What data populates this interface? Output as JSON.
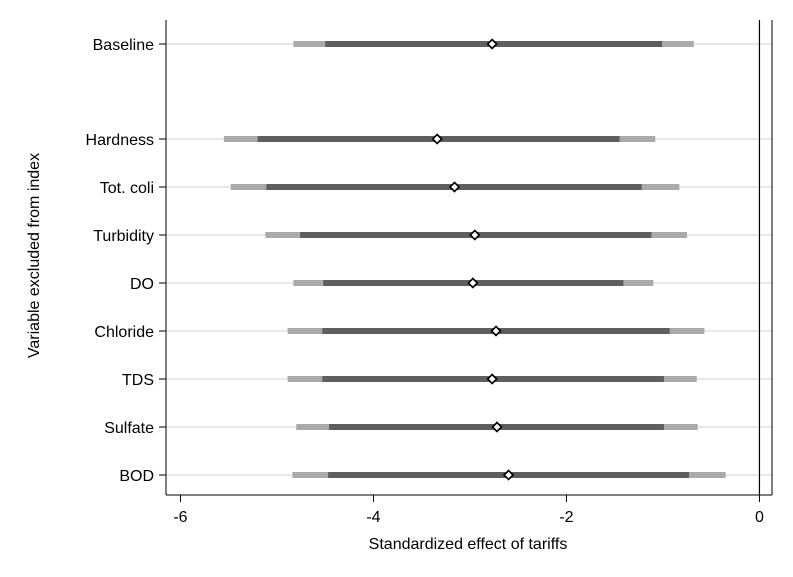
{
  "chart_data": {
    "type": "coefficient-interval",
    "title": "",
    "xlabel": "Standardized effect of tariffs",
    "ylabel": "Variable excluded from index",
    "xlim": [
      -6.15,
      0.13
    ],
    "xticks": [
      -6,
      -4,
      -2,
      0
    ],
    "xtick_labels": [
      "-6",
      "-4",
      "-2",
      "0"
    ],
    "reference_line": 0,
    "rows": [
      {
        "label": "Baseline",
        "estimate": -2.77,
        "ci95": [
          -4.83,
          -0.68
        ],
        "ci90": [
          -4.5,
          -1.01
        ]
      },
      {
        "label": "Hardness",
        "estimate": -3.34,
        "ci95": [
          -5.55,
          -1.08
        ],
        "ci90": [
          -5.2,
          -1.45
        ]
      },
      {
        "label": "Tot. coli",
        "estimate": -3.16,
        "ci95": [
          -5.48,
          -0.83
        ],
        "ci90": [
          -5.11,
          -1.22
        ]
      },
      {
        "label": "Turbidity",
        "estimate": -2.95,
        "ci95": [
          -5.12,
          -0.75
        ],
        "ci90": [
          -4.76,
          -1.12
        ]
      },
      {
        "label": "DO",
        "estimate": -2.97,
        "ci95": [
          -4.83,
          -1.1
        ],
        "ci90": [
          -4.52,
          -1.41
        ]
      },
      {
        "label": "Chloride",
        "estimate": -2.73,
        "ci95": [
          -4.89,
          -0.57
        ],
        "ci90": [
          -4.53,
          -0.93
        ]
      },
      {
        "label": "TDS",
        "estimate": -2.77,
        "ci95": [
          -4.89,
          -0.65
        ],
        "ci90": [
          -4.53,
          -0.99
        ]
      },
      {
        "label": "Sulfate",
        "estimate": -2.72,
        "ci95": [
          -4.8,
          -0.64
        ],
        "ci90": [
          -4.46,
          -0.99
        ]
      },
      {
        "label": "BOD",
        "estimate": -2.6,
        "ci95": [
          -4.84,
          -0.35
        ],
        "ci90": [
          -4.47,
          -0.73
        ]
      }
    ],
    "colors": {
      "ci95": "#aaaaaa",
      "ci90": "#5e5e5e",
      "gridline": "#d9d9d9",
      "marker_fill": "#ffffff",
      "marker_stroke": "#000000",
      "axis": "#000000"
    }
  }
}
